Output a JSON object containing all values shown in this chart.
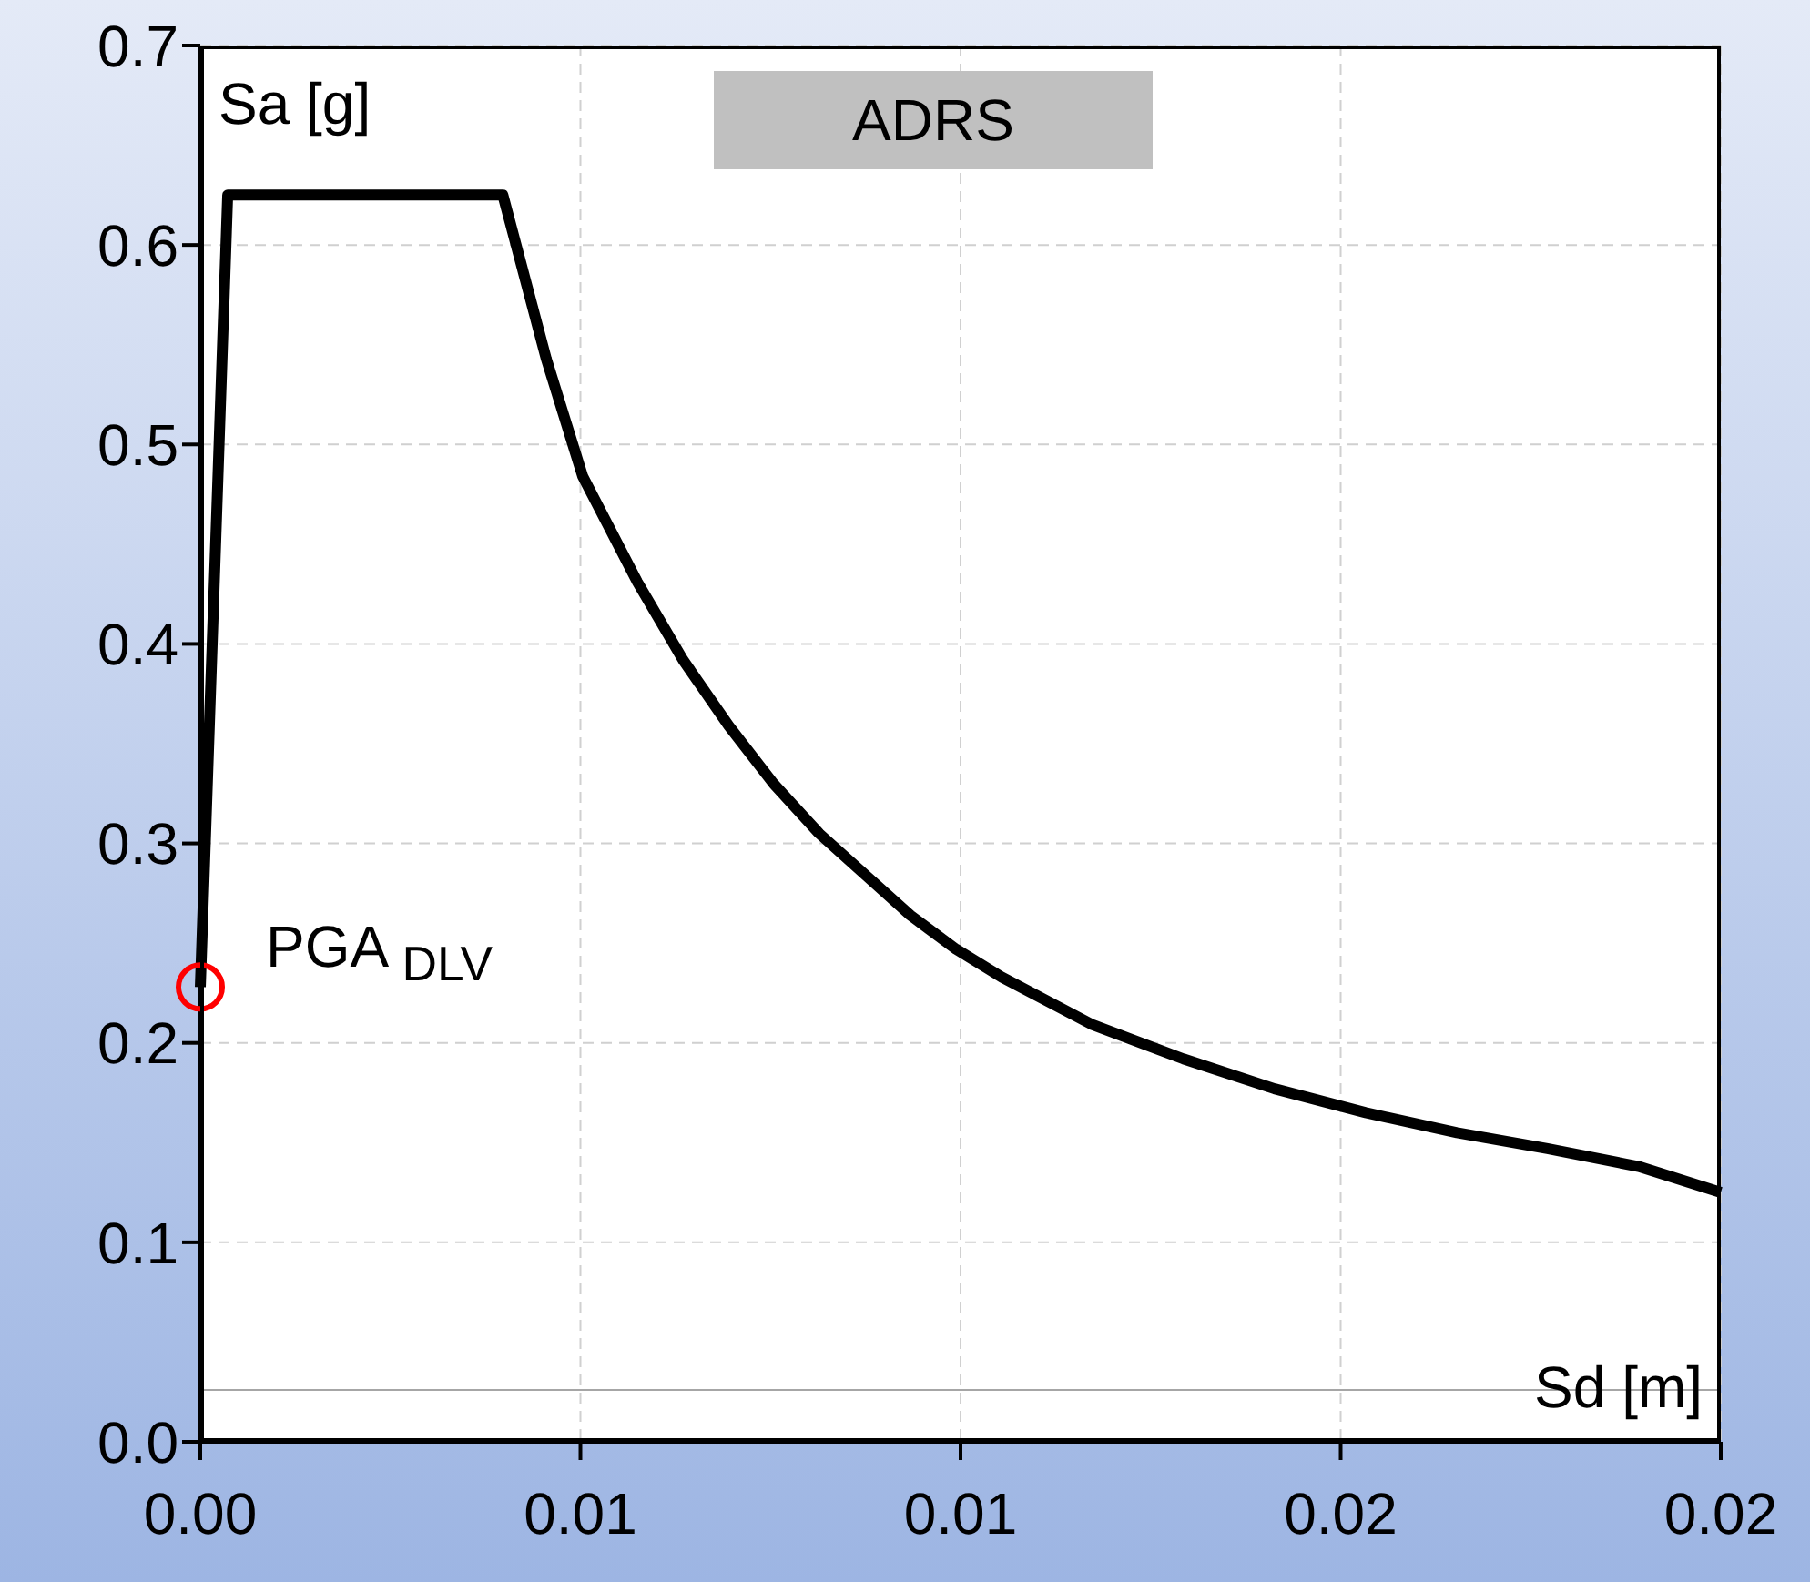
{
  "chart_data": {
    "type": "line",
    "title": "ADRS",
    "xlabel": "Sd [m]",
    "ylabel": "Sa [g]",
    "annotations": [
      {
        "text": "PGA $_{DLV}$",
        "x": 0,
        "y": 0.228
      }
    ],
    "xlim": [
      0,
      0.02
    ],
    "xticks": [
      {
        "value": 0,
        "label": "0.00"
      },
      {
        "value": 0.005,
        "label": "0.01"
      },
      {
        "value": 0.01,
        "label": "0.01"
      },
      {
        "value": 0.015,
        "label": "0.02"
      },
      {
        "value": 0.02,
        "label": "0.02"
      }
    ],
    "ylim": [
      0,
      0.7
    ],
    "yticks": [
      {
        "value": 0,
        "label": "0.0"
      },
      0.1,
      0.2,
      0.3,
      0.4,
      0.5,
      0.6,
      0.7
    ],
    "grid": true,
    "legend": false,
    "ref_lines": [
      {
        "axis": "y",
        "value": 0.026,
        "color": "#a6a6a6"
      }
    ],
    "series": [
      {
        "color": "#000000",
        "marker": "none",
        "line_style": "solid",
        "x": [
          0,
          0.00036,
          0.00398,
          0.00455,
          0.00503,
          0.00575,
          0.00635,
          0.00695,
          0.00754,
          0.00814,
          0.00934,
          0.00994,
          0.01054,
          0.01174,
          0.01293,
          0.01413,
          0.01533,
          0.01653,
          0.01772,
          0.01892,
          0.02
        ],
        "values": [
          0.228,
          0.625,
          0.625,
          0.543,
          0.484,
          0.431,
          0.392,
          0.359,
          0.33,
          0.305,
          0.264,
          0.247,
          0.233,
          0.209,
          0.192,
          0.177,
          0.165,
          0.155,
          0.147,
          0.138,
          0.125
        ]
      },
      {
        "type": "scatter",
        "color": "#ff0000",
        "marker": "circle",
        "x": [
          0
        ],
        "values": [
          0.228
        ]
      }
    ]
  }
}
